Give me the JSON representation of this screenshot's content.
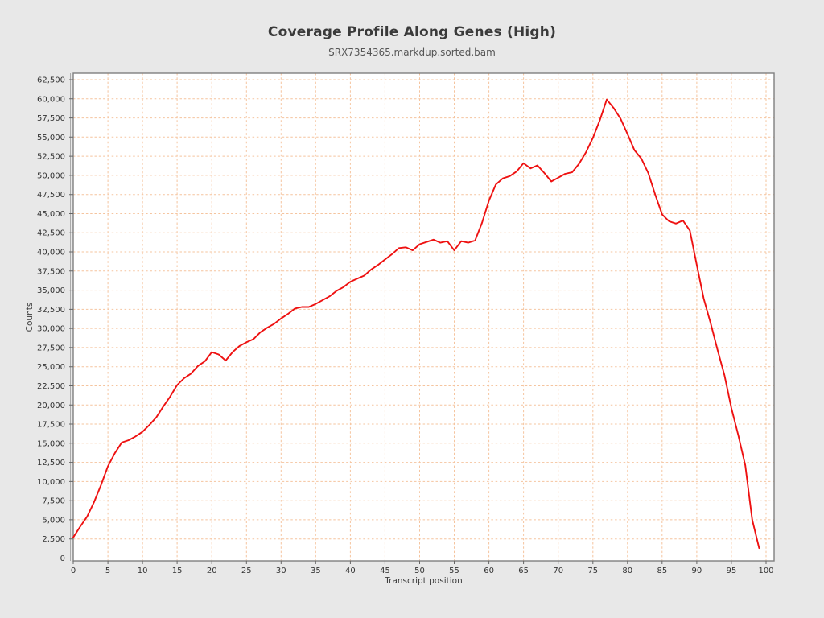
{
  "title": "Coverage Profile Along Genes (High)",
  "subtitle": "SRX7354365.markdup.sorted.bam",
  "colors": {
    "page_background": "#e8e8e8",
    "plot_background": "#ffffff",
    "line": "#ee1111",
    "grid": "#f5c49e",
    "spine": "#7f7f7f",
    "spine_inner": "#ababab",
    "tick": "#666666",
    "tick_label": "#333333"
  },
  "chart_data": {
    "type": "line",
    "title": "Coverage Profile Along Genes (High)",
    "subtitle": "SRX7354365.markdup.sorted.bam",
    "xlabel": "Transcript position",
    "ylabel": "Counts",
    "xlim": [
      0,
      101
    ],
    "ylim": [
      0,
      62500
    ],
    "grid": true,
    "legend": false,
    "xticks": [
      0,
      5,
      10,
      15,
      20,
      25,
      30,
      35,
      40,
      45,
      50,
      55,
      60,
      65,
      70,
      75,
      80,
      85,
      90,
      95,
      100
    ],
    "xtick_labels": [
      "0",
      "5",
      "10",
      "15",
      "20",
      "25",
      "30",
      "35",
      "40",
      "45",
      "50",
      "55",
      "60",
      "65",
      "70",
      "75",
      "80",
      "85",
      "90",
      "95",
      "100"
    ],
    "yticks": [
      0,
      2500,
      5000,
      7500,
      10000,
      12500,
      15000,
      17500,
      20000,
      22500,
      25000,
      27500,
      30000,
      32500,
      35000,
      37500,
      40000,
      42500,
      45000,
      47500,
      50000,
      52500,
      55000,
      57500,
      60000,
      62500
    ],
    "ytick_labels": [
      "0",
      "2,500",
      "5,000",
      "7,500",
      "10,000",
      "12,500",
      "15,000",
      "17,500",
      "20,000",
      "22,500",
      "25,000",
      "27,500",
      "30,000",
      "32,500",
      "35,000",
      "37,500",
      "40,000",
      "42,500",
      "45,000",
      "47,500",
      "50,000",
      "52,500",
      "55,000",
      "57,500",
      "60,000",
      "62,500"
    ],
    "series": [
      {
        "name": "SRX7354365.markdup.sorted.bam",
        "x_start": 0,
        "x_step": 1,
        "values": [
          2700,
          4100,
          5400,
          7300,
          9500,
          12000,
          13700,
          15100,
          15400,
          15900,
          16500,
          17400,
          18400,
          19800,
          21100,
          22600,
          23500,
          24100,
          25100,
          25700,
          26900,
          26600,
          25800,
          26900,
          27700,
          28200,
          28600,
          29500,
          30100,
          30600,
          31300,
          31900,
          32600,
          32800,
          32800,
          33200,
          33700,
          34200,
          34900,
          35400,
          36100,
          36500,
          36900,
          37700,
          38300,
          39000,
          39700,
          40500,
          40600,
          40200,
          41000,
          41300,
          41600,
          41200,
          41400,
          40200,
          41400,
          41200,
          41500,
          43800,
          46700,
          48800,
          49600,
          49900,
          50500,
          51600,
          50900,
          51300,
          50300,
          49200,
          49700,
          50200,
          50400,
          51500,
          53000,
          54900,
          57200,
          59900,
          58800,
          57400,
          55400,
          53300,
          52200,
          50300,
          47500,
          44900,
          44000,
          43700,
          44100,
          42800,
          38300,
          33900,
          30700,
          27200,
          23900,
          19600,
          16000,
          12100,
          5000,
          1300
        ]
      }
    ]
  }
}
